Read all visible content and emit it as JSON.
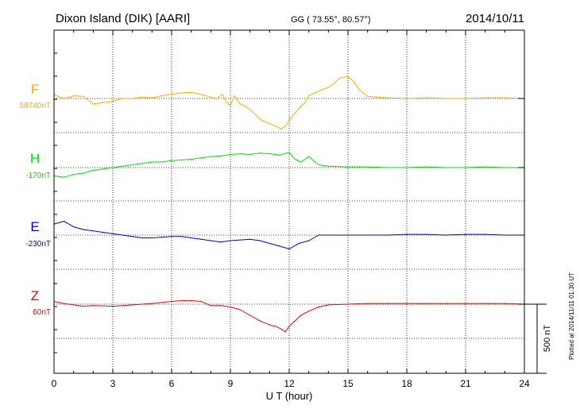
{
  "header": {
    "station": "Dixon Island (DIK)  [AARI]",
    "coords": "GG ( 73.55°,  80.57°)",
    "date": "2014/10/11"
  },
  "footer": {
    "plotted": "Plotted at 2014/11/11 01:30 UT",
    "scale": "500 nT"
  },
  "chart_data": {
    "type": "line",
    "title": "Dixon Island (DIK)  [AARI]",
    "xlabel": "U T (hour)",
    "ylabel": "",
    "xlim": [
      0,
      24
    ],
    "xticks": [
      0,
      3,
      6,
      9,
      12,
      15,
      18,
      21,
      24
    ],
    "xtick_labels": [
      "0",
      "3",
      "6",
      "9",
      "12",
      "15",
      "18",
      "21",
      "24"
    ],
    "grid": true,
    "scale_bar_nT": 500,
    "offset_units": "nT relative to baseline; positive is up",
    "series": [
      {
        "name": "F",
        "baseline_label": "58740nT",
        "color": "#ffaa00",
        "x": [
          0,
          0.3,
          0.6,
          1,
          1.5,
          2,
          2.5,
          3,
          3.5,
          4,
          4.5,
          5,
          5.5,
          6,
          6.5,
          7,
          7.5,
          8,
          8.3,
          8.6,
          8.8,
          9,
          9.2,
          9.5,
          9.8,
          10,
          10.3,
          10.6,
          11,
          11.3,
          11.6,
          11.8,
          12,
          12.2,
          12.5,
          12.8,
          13,
          13.3,
          13.6,
          14,
          14.3,
          14.6,
          15,
          15.3,
          15.6,
          16,
          16.5,
          17,
          18,
          19,
          20,
          21,
          22,
          23,
          24
        ],
        "y": [
          30,
          10,
          0,
          20,
          15,
          -40,
          -30,
          -20,
          0,
          0,
          10,
          5,
          20,
          30,
          40,
          45,
          30,
          10,
          0,
          30,
          -30,
          -50,
          20,
          -40,
          -60,
          -80,
          -120,
          -160,
          -180,
          -200,
          -220,
          -200,
          -160,
          -120,
          -70,
          -30,
          20,
          40,
          60,
          80,
          110,
          150,
          160,
          120,
          60,
          15,
          10,
          5,
          0,
          5,
          0,
          0,
          5,
          5,
          0
        ]
      },
      {
        "name": "H",
        "baseline_label": "-170nT",
        "color": "#00dd00",
        "x": [
          0,
          0.5,
          1,
          1.5,
          2,
          2.5,
          3,
          3.5,
          4,
          4.5,
          5,
          5.5,
          6,
          6.5,
          7,
          7.5,
          8,
          8.5,
          9,
          9.5,
          10,
          10.5,
          11,
          11.5,
          12,
          12.3,
          12.6,
          13,
          13.5,
          14,
          15,
          16,
          17,
          18,
          19,
          20,
          21,
          22,
          23,
          24
        ],
        "y": [
          -60,
          -70,
          -50,
          -40,
          -20,
          -10,
          0,
          10,
          20,
          30,
          40,
          40,
          50,
          55,
          60,
          70,
          80,
          85,
          95,
          100,
          95,
          105,
          100,
          90,
          110,
          60,
          40,
          80,
          20,
          10,
          5,
          5,
          0,
          0,
          5,
          0,
          0,
          5,
          0,
          0
        ]
      },
      {
        "name": "E",
        "baseline_label": "-230nT",
        "color": "#0000cc",
        "x": [
          0,
          0.5,
          1,
          1.5,
          2,
          2.5,
          3,
          3.5,
          4,
          4.5,
          5,
          5.5,
          6,
          6.5,
          7,
          7.5,
          8,
          8.5,
          9,
          9.5,
          10,
          10.5,
          11,
          11.5,
          12,
          12.5,
          13,
          13.5,
          14,
          15,
          16,
          17,
          18,
          19,
          20,
          21,
          22,
          23,
          24
        ],
        "y": [
          80,
          100,
          60,
          40,
          30,
          20,
          10,
          0,
          -10,
          -20,
          -20,
          -15,
          -10,
          -10,
          -20,
          -30,
          -40,
          -50,
          -40,
          -35,
          -30,
          -40,
          -60,
          -80,
          -100,
          -60,
          -40,
          0,
          0,
          0,
          0,
          0,
          5,
          5,
          0,
          5,
          5,
          0,
          0
        ]
      },
      {
        "name": "Z",
        "baseline_label": "60nT",
        "color": "#ee0000",
        "x": [
          0,
          0.5,
          1,
          1.5,
          2,
          3,
          4,
          5,
          6,
          6.5,
          7,
          7.5,
          8,
          8.5,
          9,
          9.5,
          10,
          10.5,
          11,
          11.3,
          11.6,
          11.8,
          12,
          12.3,
          12.6,
          13,
          13.5,
          14,
          15,
          16,
          17,
          18,
          19,
          20,
          21,
          22,
          23,
          24
        ],
        "y": [
          20,
          5,
          -5,
          -15,
          -10,
          -15,
          -5,
          5,
          20,
          25,
          25,
          20,
          -10,
          -10,
          -20,
          -40,
          -80,
          -120,
          -150,
          -160,
          -180,
          -200,
          -160,
          -120,
          -80,
          -50,
          -20,
          -5,
          0,
          5,
          5,
          5,
          5,
          5,
          5,
          5,
          5,
          0
        ]
      }
    ]
  }
}
